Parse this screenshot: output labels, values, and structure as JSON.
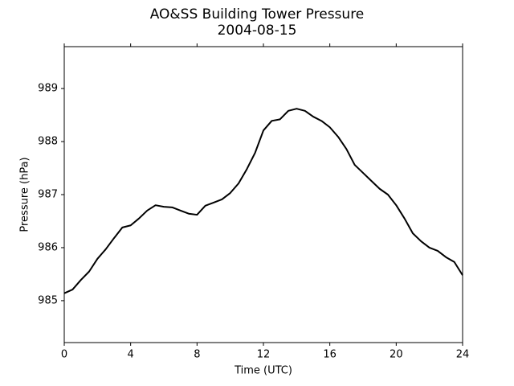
{
  "chart_data": {
    "type": "line",
    "title": "AO&SS Building Tower Pressure",
    "subtitle": "2004-08-15",
    "x_label": "Time (UTC)",
    "y_label": "Pressure (hPa)",
    "x": [
      0,
      0.5,
      1,
      1.5,
      2,
      2.5,
      3,
      3.5,
      4,
      4.5,
      5,
      5.5,
      6,
      6.5,
      7,
      7.5,
      8,
      8.5,
      9,
      9.5,
      10,
      10.5,
      11,
      11.5,
      12,
      12.5,
      13,
      13.5,
      14,
      14.5,
      15,
      15.5,
      16,
      16.5,
      17,
      17.5,
      18,
      18.5,
      19,
      19.5,
      20,
      20.5,
      21,
      21.5,
      22,
      22.5,
      23,
      23.5,
      24
    ],
    "series": [
      {
        "name": "Pressure",
        "color": "#000000",
        "values": [
          985.14,
          985.21,
          985.39,
          985.55,
          985.79,
          985.97,
          986.18,
          986.38,
          986.42,
          986.55,
          986.7,
          986.8,
          986.77,
          986.76,
          986.7,
          986.64,
          986.62,
          986.79,
          986.85,
          986.91,
          987.03,
          987.21,
          987.48,
          987.79,
          988.21,
          988.39,
          988.42,
          988.58,
          988.62,
          988.58,
          988.47,
          988.39,
          988.27,
          988.09,
          987.86,
          987.56,
          987.41,
          987.26,
          987.11,
          987.0,
          986.8,
          986.55,
          986.27,
          986.12,
          986.0,
          985.94,
          985.82,
          985.73,
          985.48
        ]
      }
    ],
    "xlim": [
      0,
      24
    ],
    "xticks": [
      0,
      4,
      8,
      12,
      16,
      20,
      24
    ],
    "ylim": [
      984.21,
      989.79
    ],
    "yticks": [
      985,
      986,
      987,
      988,
      989
    ]
  }
}
